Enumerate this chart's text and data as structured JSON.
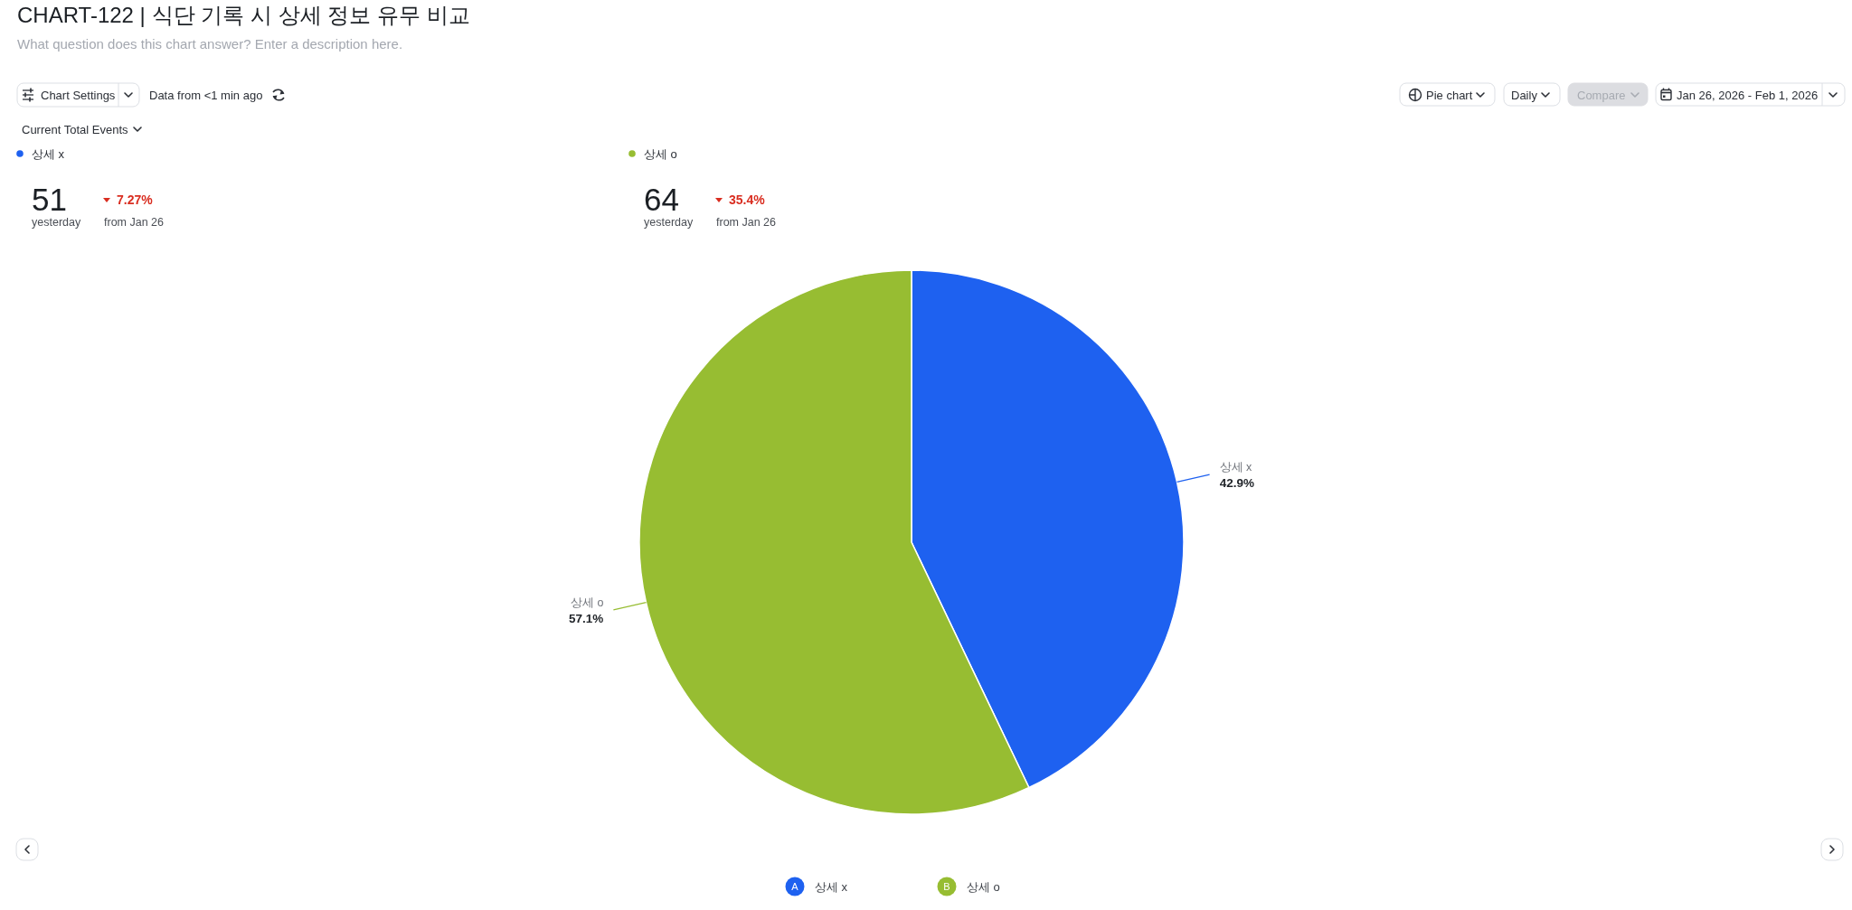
{
  "chart_data": {
    "type": "pie",
    "title": "CHART-122 | 식단 기록 시 상세 정보 유무 비교",
    "subtitle": "What question does this chart answer? Enter a description here.",
    "categories": [
      "상세 x",
      "상세 o"
    ],
    "values": [
      42.9,
      57.1
    ],
    "colors": [
      "#1e61f0",
      "#97bd32"
    ],
    "value_labels": [
      "42.9%",
      "57.1%"
    ],
    "legend": "bottom",
    "annotations": [
      "Chart Settings",
      "Data from <1 min ago",
      "Current Total Events",
      "Pie chart",
      "Daily",
      "Compare",
      "Jan 26, 2026 - Feb 1, 2026",
      "51",
      "yesterday",
      "7.27%",
      "from Jan 26",
      "64",
      "yesterday",
      "35.4%",
      "from Jan 26",
      "A",
      "B"
    ]
  }
}
